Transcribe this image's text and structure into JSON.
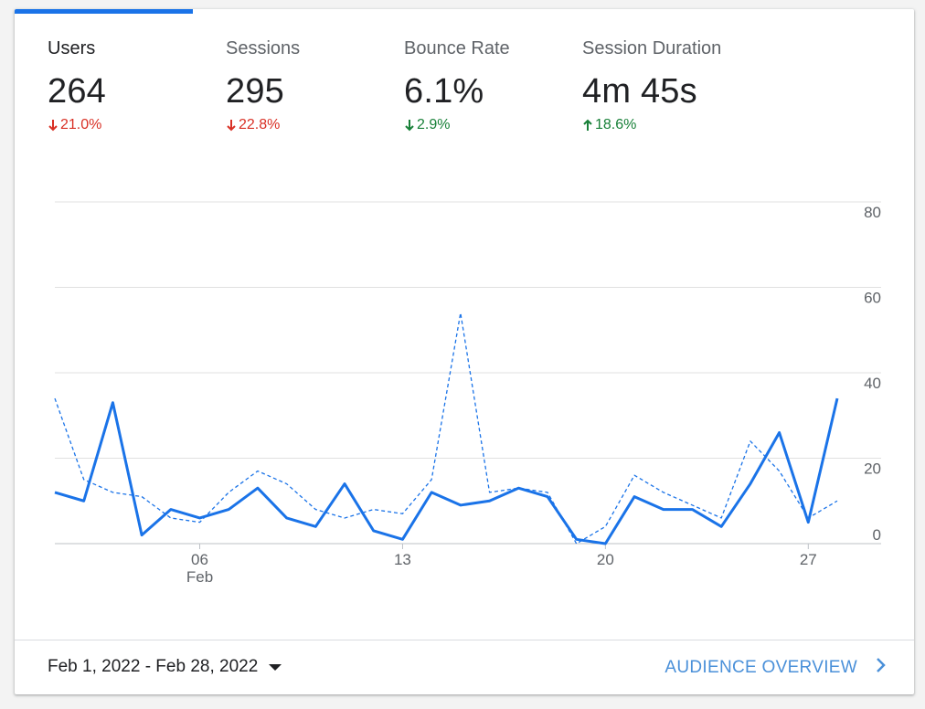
{
  "metrics": [
    {
      "label": "Users",
      "value": "264",
      "change": "21.0%",
      "direction": "down",
      "tone": "negative"
    },
    {
      "label": "Sessions",
      "value": "295",
      "change": "22.8%",
      "direction": "down",
      "tone": "negative"
    },
    {
      "label": "Bounce Rate",
      "value": "6.1%",
      "change": "2.9%",
      "direction": "down",
      "tone": "positive"
    },
    {
      "label": "Session Duration",
      "value": "4m 45s",
      "change": "18.6%",
      "direction": "up",
      "tone": "positive"
    }
  ],
  "colors": {
    "accent": "#1a73e8",
    "negative": "#d93025",
    "positive": "#188038",
    "link": "#4a90d9"
  },
  "chart_data": {
    "type": "line",
    "x": [
      1,
      2,
      3,
      4,
      5,
      6,
      7,
      8,
      9,
      10,
      11,
      12,
      13,
      14,
      15,
      16,
      17,
      18,
      19,
      20,
      21,
      22,
      23,
      24,
      25,
      26,
      27,
      28
    ],
    "series": [
      {
        "style": "solid",
        "values": [
          12,
          10,
          33,
          2,
          8,
          6,
          8,
          13,
          6,
          4,
          14,
          3,
          1,
          12,
          9,
          10,
          13,
          11,
          1,
          0,
          11,
          8,
          8,
          4,
          14,
          26,
          5,
          34
        ]
      },
      {
        "style": "dashed",
        "values": [
          34,
          15,
          12,
          11,
          6,
          5,
          12,
          17,
          14,
          8,
          6,
          8,
          7,
          15,
          54,
          12,
          13,
          12,
          0,
          4,
          16,
          12,
          9,
          6,
          24,
          17,
          6,
          10
        ]
      }
    ],
    "ylim": [
      0,
      80
    ],
    "yticks": [
      "0",
      "20",
      "40",
      "60",
      "80"
    ],
    "xticks": [
      {
        "x": 6,
        "label": "06",
        "sublabel": "Feb"
      },
      {
        "x": 13,
        "label": "13"
      },
      {
        "x": 20,
        "label": "20"
      },
      {
        "x": 27,
        "label": "27"
      }
    ],
    "grid": true
  },
  "footer": {
    "date_range": "Feb 1, 2022 - Feb 28, 2022",
    "overview_label": "AUDIENCE OVERVIEW"
  }
}
